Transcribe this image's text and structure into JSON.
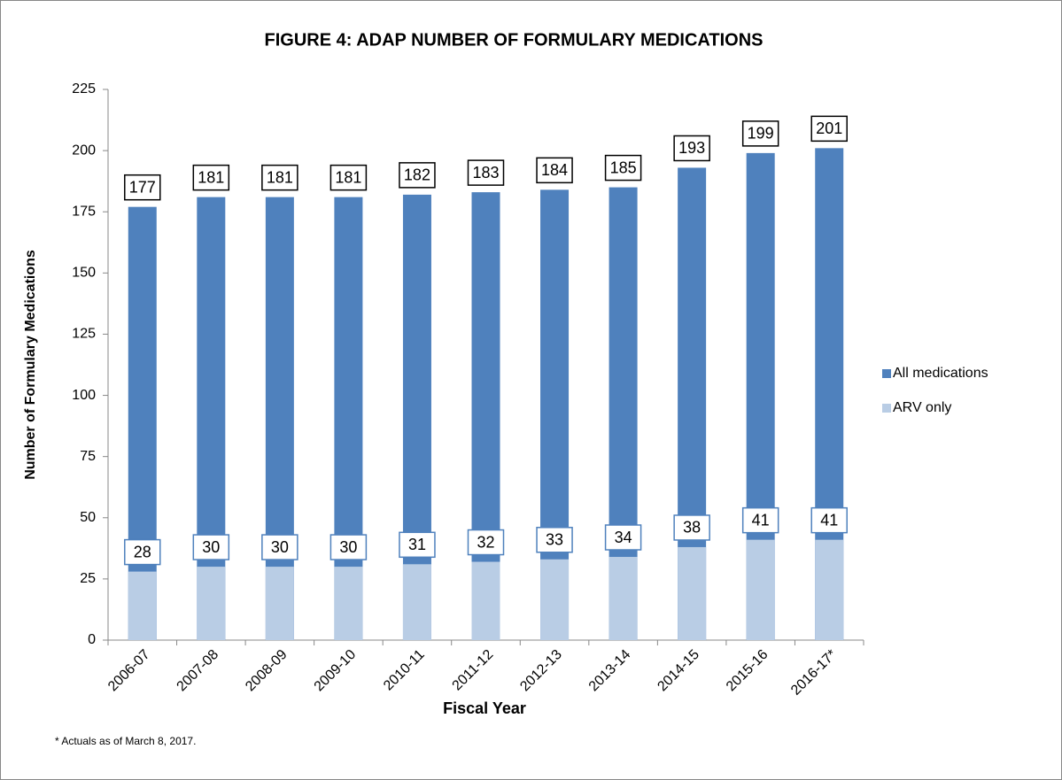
{
  "chart_data": {
    "type": "bar",
    "barmode": "overlay",
    "title": "FIGURE 4: ADAP NUMBER OF FORMULARY MEDICATIONS",
    "xlabel": "Fiscal Year",
    "ylabel": "Number of Formulary Medications",
    "footnote": "* Actuals as of March 8, 2017.",
    "categories": [
      "2006-07",
      "2007-08",
      "2008-09",
      "2009-10",
      "2010-11",
      "2011-12",
      "2012-13",
      "2013-14",
      "2014-15",
      "2015-16",
      "2016-17*"
    ],
    "series": [
      {
        "name": "All medications",
        "color": "#4f81bd",
        "label_border": "#000000",
        "values": [
          177,
          181,
          181,
          181,
          182,
          183,
          184,
          185,
          193,
          199,
          201
        ]
      },
      {
        "name": "ARV only",
        "color": "#b9cde5",
        "label_border": "#4f81bd",
        "values": [
          28,
          30,
          30,
          30,
          31,
          32,
          33,
          34,
          38,
          41,
          41
        ]
      }
    ],
    "ylim": [
      0,
      225
    ],
    "yticks": [
      0,
      25,
      50,
      75,
      100,
      125,
      150,
      175,
      200,
      225
    ],
    "grid": false,
    "legend": "right"
  }
}
